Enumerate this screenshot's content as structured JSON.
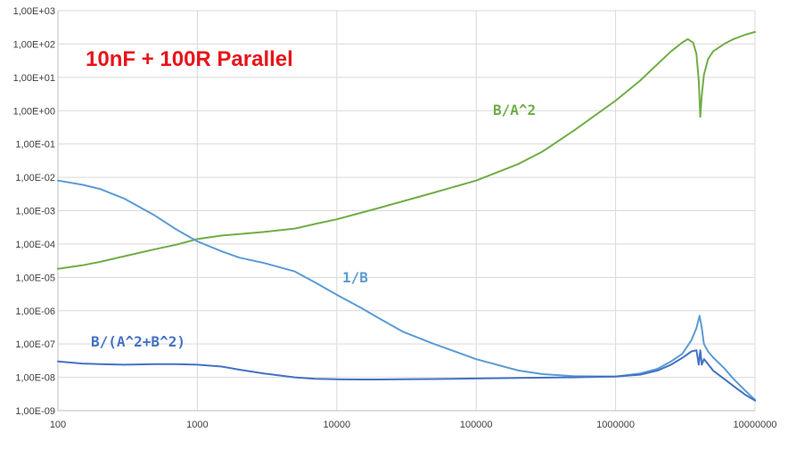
{
  "chart_data": {
    "type": "line",
    "title": "10nF + 100R Parallel",
    "x_scale": "log",
    "y_scale": "log",
    "xlim": [
      100,
      10000000
    ],
    "ylim": [
      1e-09,
      1000
    ],
    "x_ticks": [
      "100",
      "1000",
      "10000",
      "100000",
      "1000000",
      "10000000"
    ],
    "y_ticks": [
      "1,00E-09",
      "1,00E-08",
      "1,00E-07",
      "1,00E-06",
      "1,00E-05",
      "1,00E-04",
      "1,00E-03",
      "1,00E-02",
      "1,00E-01",
      "1,00E+00",
      "1,00E+01",
      "1,00E+02",
      "1,00E+03"
    ],
    "grid": true,
    "legend": "none",
    "series": [
      {
        "name": "B/A^2",
        "color": "#70ad47",
        "x": [
          100,
          150,
          200,
          300,
          500,
          700,
          1000,
          1500,
          2000,
          3000,
          5000,
          7000,
          10000,
          20000,
          50000,
          100000,
          200000,
          300000,
          500000,
          1000000,
          1500000,
          2000000,
          2500000,
          3000000,
          3300000,
          3600000,
          3800000,
          3950000,
          4050000,
          4150000,
          4300000,
          4600000,
          5000000,
          6000000,
          7000000,
          8500000,
          10000000
        ],
        "y": [
          1.8e-05,
          2.3e-05,
          2.9e-05,
          4.3e-05,
          7e-05,
          9.5e-05,
          0.00014,
          0.00018,
          0.0002,
          0.00023,
          0.00029,
          0.0004,
          0.00055,
          0.0012,
          0.0035,
          0.008,
          0.025,
          0.06,
          0.25,
          2,
          8,
          25,
          60,
          110,
          140,
          110,
          50,
          8,
          0.65,
          3,
          12,
          35,
          60,
          100,
          140,
          190,
          230
        ]
      },
      {
        "name": "1/B",
        "color": "#5b9bd5",
        "x": [
          100,
          150,
          200,
          300,
          500,
          700,
          1000,
          1500,
          2000,
          3000,
          5000,
          7000,
          10000,
          15000,
          20000,
          30000,
          50000,
          100000,
          200000,
          300000,
          500000,
          1000000,
          1500000,
          2000000,
          2500000,
          3000000,
          3500000,
          3800000,
          4000000,
          4150000,
          4300000,
          4600000,
          5000000,
          6000000,
          7000000,
          8500000,
          10000000
        ],
        "y": [
          0.008,
          0.006,
          0.0045,
          0.0023,
          0.0007,
          0.00028,
          0.00012,
          6e-05,
          3.9e-05,
          2.7e-05,
          1.5e-05,
          7e-06,
          3e-06,
          1.2e-06,
          6e-07,
          2.3e-07,
          1e-07,
          3.5e-08,
          1.6e-08,
          1.25e-08,
          1.08e-08,
          1.05e-08,
          1.3e-08,
          1.8e-08,
          3e-08,
          5e-08,
          1.3e-07,
          3e-07,
          7e-07,
          3e-07,
          1e-07,
          6e-08,
          4e-08,
          1.9e-08,
          9e-09,
          4e-09,
          2.1e-09
        ]
      },
      {
        "name": "B/(A^2+B^2)",
        "color": "#4472c4",
        "x": [
          100,
          150,
          200,
          300,
          500,
          700,
          1000,
          1500,
          2000,
          3000,
          5000,
          7000,
          10000,
          15000,
          20000,
          30000,
          50000,
          100000,
          200000,
          500000,
          1000000,
          1500000,
          2000000,
          2500000,
          3000000,
          3500000,
          3800000,
          3950000,
          4050000,
          4150000,
          4300000,
          4600000,
          5000000,
          6000000,
          7000000,
          8500000,
          10000000
        ],
        "y": [
          3e-08,
          2.6e-08,
          2.5e-08,
          2.4e-08,
          2.5e-08,
          2.5e-08,
          2.4e-08,
          2.1e-08,
          1.7e-08,
          1.3e-08,
          1e-08,
          9e-09,
          8.7e-09,
          8.6e-09,
          8.6e-09,
          8.7e-09,
          8.9e-09,
          9.2e-09,
          9.6e-09,
          1e-08,
          1.06e-08,
          1.2e-08,
          1.6e-08,
          2.4e-08,
          3.8e-08,
          6e-08,
          6.5e-08,
          2.4e-08,
          6.5e-08,
          2.4e-08,
          3.5e-08,
          2.5e-08,
          1.6e-08,
          9e-09,
          5.5e-09,
          3e-09,
          2e-09
        ]
      }
    ],
    "annotations": [
      {
        "text": "B/A^2",
        "series": 0
      },
      {
        "text": "1/B",
        "series": 1
      },
      {
        "text": "B/(A^2+B^2)",
        "series": 2
      }
    ]
  }
}
